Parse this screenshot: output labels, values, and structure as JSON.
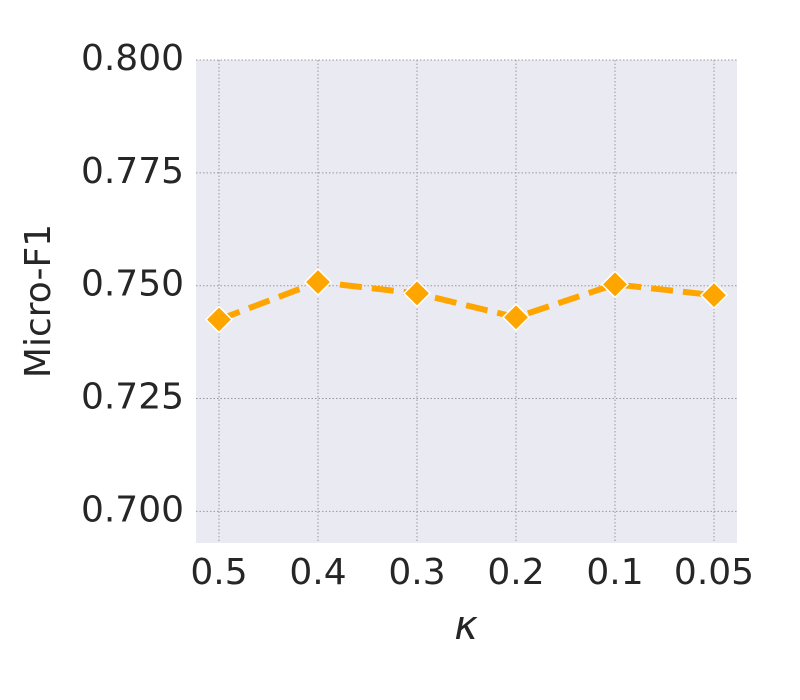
{
  "chart_data": {
    "type": "line",
    "x_label": "κ",
    "y_label": "Micro-F1",
    "categories": [
      "0.5",
      "0.4",
      "0.3",
      "0.2",
      "0.1",
      "0.05"
    ],
    "series": [
      {
        "name": "Micro-F1",
        "color": "#ffa500",
        "values": [
          0.7425,
          0.7508,
          0.7483,
          0.743,
          0.7503,
          0.7479
        ]
      }
    ],
    "ylim": [
      0.693,
      0.8
    ],
    "yticks": [
      {
        "value": 0.7,
        "label": "0.700"
      },
      {
        "value": 0.725,
        "label": "0.725"
      },
      {
        "value": 0.75,
        "label": "0.750"
      },
      {
        "value": 0.775,
        "label": "0.775"
      },
      {
        "value": 0.8,
        "label": "0.800"
      }
    ],
    "grid": true
  }
}
